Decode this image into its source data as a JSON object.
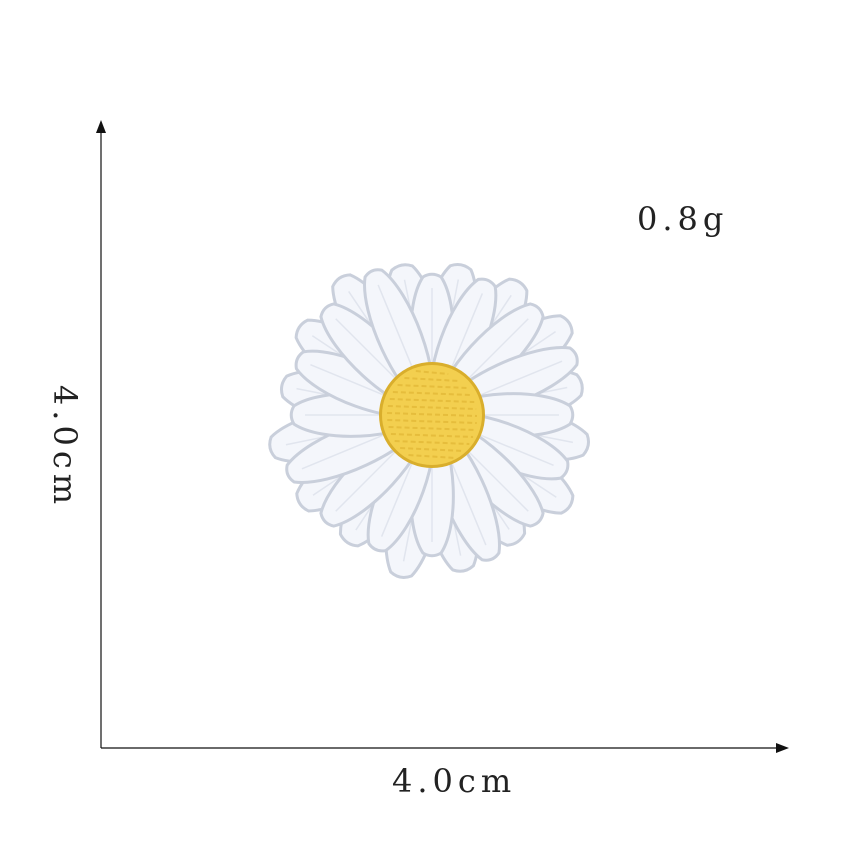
{
  "product": {
    "weight": "0.8g",
    "width_label": "4.0cm",
    "height_label": "4.0cm",
    "image_name": "daisy-embroidered-patch"
  },
  "colors": {
    "background": "#ffffff",
    "axis": "#111111",
    "text": "#222222",
    "petal": "#f4f6fb",
    "petal_edge": "#c9cfdb",
    "center": "#f3cf4f",
    "center_edge": "#d9ae2c"
  }
}
